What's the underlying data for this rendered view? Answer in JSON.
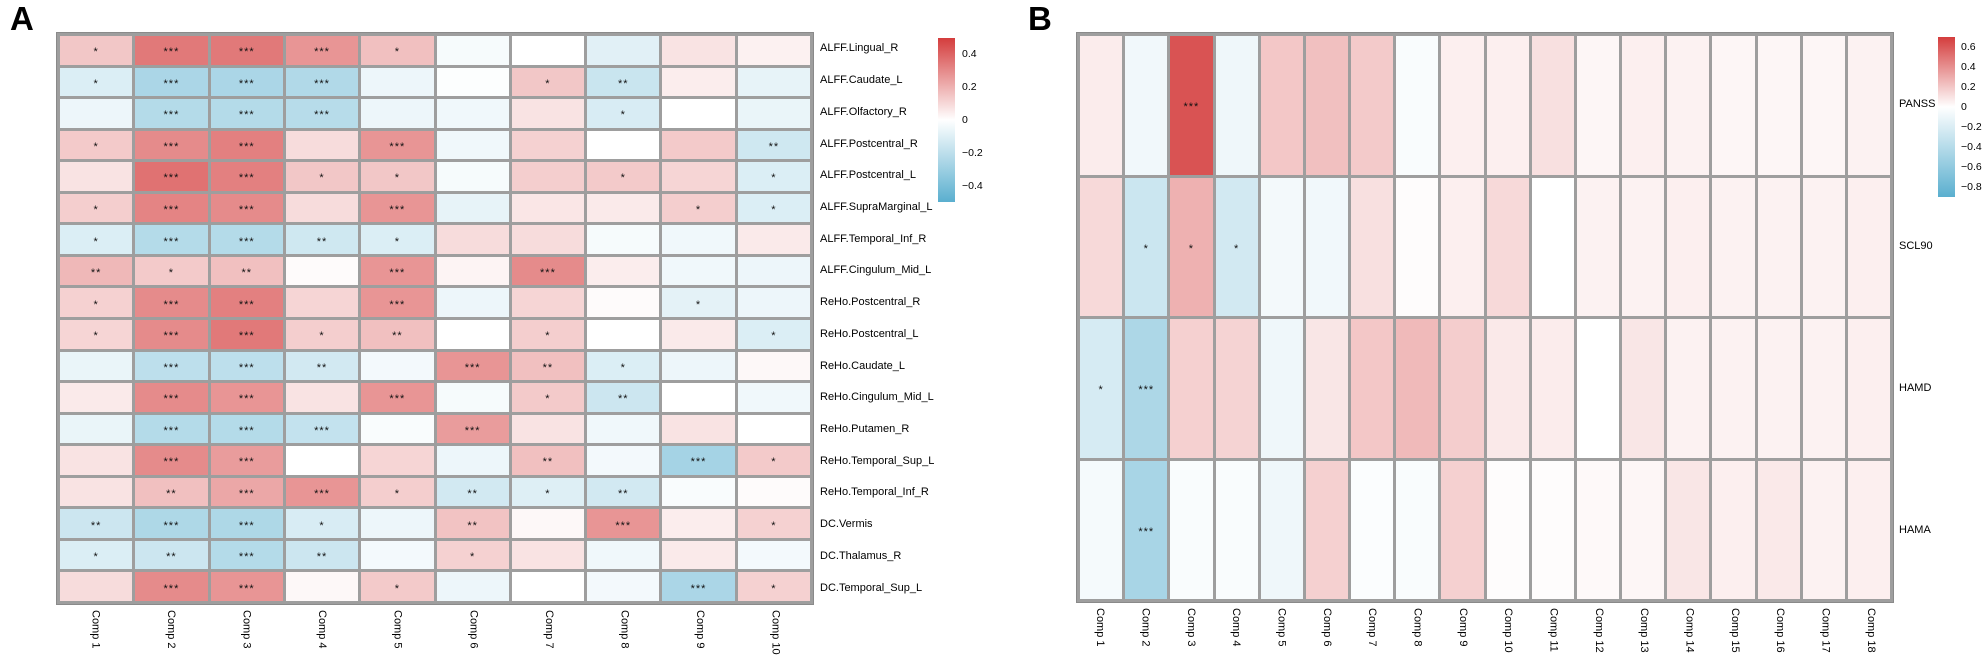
{
  "figure": {
    "panel_a_label": "A",
    "panel_b_label": "B"
  },
  "colors": {
    "positive_end": "#d43d3d",
    "negative_end": "#5aafcf",
    "zero": "#ffffff",
    "grid_line": "#9e9e9e",
    "outer_border": "#8a8a8a",
    "star": "#111111",
    "background": "#ffffff"
  },
  "chart_data": [
    {
      "type": "heatmap",
      "panel": "A",
      "columns": [
        "Comp 1",
        "Comp 2",
        "Comp 3",
        "Comp 4",
        "Comp 5",
        "Comp 6",
        "Comp 7",
        "Comp 8",
        "Comp 9",
        "Comp 10"
      ],
      "rows": [
        "ALFF.Lingual_R",
        "ALFF.Caudate_L",
        "ALFF.Olfactory_R",
        "ALFF.Postcentral_R",
        "ALFF.Postcentral_L",
        "ALFF.SupraMarginal_L",
        "ALFF.Temporal_Inf_R",
        "ALFF.Cingulum_Mid_L",
        "ReHo.Postcentral_R",
        "ReHo.Postcentral_L",
        "ReHo.Caudate_L",
        "ReHo.Cingulum_Mid_L",
        "ReHo.Putamen_R",
        "ReHo.Temporal_Sup_L",
        "ReHo.Temporal_Inf_R",
        "DC.Vermis",
        "DC.Thalamus_R",
        "DC.Temporal_Sup_L"
      ],
      "values": [
        [
          0.16,
          0.38,
          0.38,
          0.3,
          0.18,
          -0.03,
          0.0,
          -0.1,
          0.08,
          0.04
        ],
        [
          -0.12,
          -0.28,
          -0.28,
          -0.26,
          -0.06,
          -0.01,
          0.16,
          -0.18,
          0.05,
          -0.08
        ],
        [
          -0.06,
          -0.25,
          -0.25,
          -0.24,
          -0.06,
          -0.05,
          0.08,
          -0.13,
          0.0,
          -0.07
        ],
        [
          0.15,
          0.33,
          0.36,
          0.1,
          0.3,
          -0.05,
          0.13,
          0.0,
          0.15,
          -0.16
        ],
        [
          0.08,
          0.4,
          0.36,
          0.16,
          0.16,
          -0.03,
          0.14,
          0.15,
          0.12,
          -0.12
        ],
        [
          0.14,
          0.35,
          0.33,
          0.1,
          0.3,
          -0.08,
          0.07,
          0.06,
          0.14,
          -0.12
        ],
        [
          -0.12,
          -0.25,
          -0.25,
          -0.16,
          -0.12,
          0.1,
          0.1,
          -0.03,
          -0.05,
          0.06
        ],
        [
          0.2,
          0.15,
          0.18,
          0.01,
          0.3,
          0.03,
          0.33,
          0.05,
          -0.05,
          -0.06
        ],
        [
          0.13,
          0.33,
          0.36,
          0.12,
          0.3,
          -0.06,
          0.12,
          0.01,
          -0.09,
          -0.06
        ],
        [
          0.12,
          0.33,
          0.38,
          0.14,
          0.18,
          0.0,
          0.14,
          0.0,
          0.06,
          -0.12
        ],
        [
          -0.07,
          -0.22,
          -0.22,
          -0.15,
          -0.04,
          0.3,
          0.18,
          -0.12,
          -0.06,
          0.02
        ],
        [
          0.06,
          0.33,
          0.3,
          0.08,
          0.3,
          -0.03,
          0.15,
          -0.17,
          0.0,
          -0.05
        ],
        [
          -0.07,
          -0.25,
          -0.25,
          -0.2,
          -0.02,
          0.28,
          0.08,
          -0.05,
          0.08,
          0.0
        ],
        [
          0.08,
          0.33,
          0.28,
          0.0,
          0.12,
          -0.06,
          0.18,
          -0.04,
          -0.3,
          0.15
        ],
        [
          0.08,
          0.18,
          0.25,
          0.3,
          0.14,
          -0.15,
          -0.11,
          -0.15,
          -0.02,
          0.01
        ],
        [
          -0.17,
          -0.27,
          -0.27,
          -0.13,
          -0.06,
          0.17,
          0.02,
          0.3,
          0.05,
          0.13
        ],
        [
          -0.12,
          -0.17,
          -0.25,
          -0.17,
          -0.04,
          0.13,
          0.08,
          -0.05,
          0.06,
          -0.04
        ],
        [
          0.1,
          0.33,
          0.3,
          0.02,
          0.15,
          -0.06,
          0.0,
          -0.04,
          -0.28,
          0.13
        ]
      ],
      "stars": [
        [
          "*",
          "***",
          "***",
          "***",
          "*",
          "",
          "",
          "",
          "",
          ""
        ],
        [
          "*",
          "***",
          "***",
          "***",
          "",
          "",
          "*",
          "**",
          "",
          ""
        ],
        [
          "",
          "***",
          "***",
          "***",
          "",
          "",
          "",
          "*",
          "",
          ""
        ],
        [
          "*",
          "***",
          "***",
          "",
          "***",
          "",
          "",
          "",
          "",
          "**"
        ],
        [
          "",
          "***",
          "***",
          "*",
          "*",
          "",
          "",
          "*",
          "",
          "*"
        ],
        [
          "*",
          "***",
          "***",
          "",
          "***",
          "",
          "",
          "",
          "*",
          "*"
        ],
        [
          "*",
          "***",
          "***",
          "**",
          "*",
          "",
          "",
          "",
          "",
          ""
        ],
        [
          "**",
          "*",
          "**",
          "",
          "***",
          "",
          "***",
          "",
          "",
          ""
        ],
        [
          "*",
          "***",
          "***",
          "",
          "***",
          "",
          "",
          "",
          "*",
          ""
        ],
        [
          "*",
          "***",
          "***",
          "*",
          "**",
          "",
          "*",
          "",
          "",
          "*"
        ],
        [
          "",
          "***",
          "***",
          "**",
          "",
          "***",
          "**",
          "*",
          "",
          ""
        ],
        [
          "",
          "***",
          "***",
          "",
          "***",
          "",
          "*",
          "**",
          "",
          ""
        ],
        [
          "",
          "***",
          "***",
          "***",
          "",
          "***",
          "",
          "",
          "",
          ""
        ],
        [
          "",
          "***",
          "***",
          "",
          "",
          "",
          "**",
          "",
          "***",
          "*"
        ],
        [
          "",
          "**",
          "***",
          "***",
          "*",
          "**",
          "*",
          "**",
          "",
          ""
        ],
        [
          "**",
          "***",
          "***",
          "*",
          "",
          "**",
          "",
          "***",
          "",
          "*"
        ],
        [
          "*",
          "**",
          "***",
          "**",
          "",
          "*",
          "",
          "",
          "",
          ""
        ],
        [
          "",
          "***",
          "***",
          "",
          "*",
          "",
          "",
          "",
          "***",
          "*"
        ]
      ],
      "color_scale": {
        "pos_full_at": 0.55,
        "neg_full_at": 0.55
      },
      "legend_range": [
        0.5,
        -0.5
      ],
      "legend_ticks": [
        {
          "label": "0.4",
          "value": 0.4
        },
        {
          "label": "0.2",
          "value": 0.2
        },
        {
          "label": "0",
          "value": 0.0
        },
        {
          "label": "−0.2",
          "value": -0.2
        },
        {
          "label": "−0.4",
          "value": -0.4
        }
      ]
    },
    {
      "type": "heatmap",
      "panel": "B",
      "columns": [
        "Comp 1",
        "Comp 2",
        "Comp 3",
        "Comp 4",
        "Comp 5",
        "Comp 6",
        "Comp 7",
        "Comp 8",
        "Comp 9",
        "Comp 10",
        "Comp 11",
        "Comp 12",
        "Comp 13",
        "Comp 14",
        "Comp 15",
        "Comp 16",
        "Comp 17",
        "Comp 18"
      ],
      "rows": [
        "PANSS",
        "SCL90",
        "HAMD",
        "HAMA"
      ],
      "values": [
        [
          0.06,
          -0.07,
          0.55,
          -0.08,
          0.18,
          0.2,
          0.17,
          -0.03,
          0.05,
          0.05,
          0.1,
          0.03,
          0.05,
          0.04,
          0.03,
          0.03,
          0.03,
          0.04
        ],
        [
          0.12,
          -0.25,
          0.25,
          -0.22,
          -0.06,
          -0.07,
          0.1,
          0.01,
          0.05,
          0.12,
          0.0,
          0.04,
          0.04,
          0.05,
          0.04,
          0.04,
          0.04,
          0.05
        ],
        [
          -0.2,
          -0.4,
          0.15,
          0.14,
          -0.08,
          0.08,
          0.18,
          0.22,
          0.16,
          0.07,
          0.06,
          0.0,
          0.08,
          0.04,
          0.04,
          0.04,
          0.04,
          0.05
        ],
        [
          -0.05,
          -0.42,
          -0.03,
          -0.03,
          -0.08,
          0.15,
          -0.02,
          -0.03,
          0.15,
          0.01,
          0.01,
          0.02,
          0.03,
          0.08,
          0.05,
          0.07,
          0.04,
          0.05
        ]
      ],
      "stars": [
        [
          "",
          "",
          "***",
          "",
          "",
          "",
          "",
          "",
          "",
          "",
          "",
          "",
          "",
          "",
          "",
          "",
          "",
          ""
        ],
        [
          "",
          "*",
          "*",
          "*",
          "",
          "",
          "",
          "",
          "",
          "",
          "",
          "",
          "",
          "",
          "",
          "",
          "",
          ""
        ],
        [
          "*",
          "***",
          "",
          "",
          "",
          "",
          "",
          "",
          "",
          "",
          "",
          "",
          "",
          "",
          "",
          "",
          "",
          ""
        ],
        [
          "",
          "***",
          "",
          "",
          "",
          "",
          "",
          "",
          "",
          "",
          "",
          "",
          "",
          "",
          "",
          "",
          "",
          ""
        ]
      ],
      "color_scale": {
        "pos_full_at": 0.62,
        "neg_full_at": 0.8
      },
      "legend_range": [
        0.7,
        -0.9
      ],
      "legend_ticks": [
        {
          "label": "0.6",
          "value": 0.6
        },
        {
          "label": "0.4",
          "value": 0.4
        },
        {
          "label": "0.2",
          "value": 0.2
        },
        {
          "label": "0",
          "value": 0.0
        },
        {
          "label": "−0.2",
          "value": -0.2
        },
        {
          "label": "−0.4",
          "value": -0.4
        },
        {
          "label": "−0.6",
          "value": -0.6
        },
        {
          "label": "−0.8",
          "value": -0.8
        }
      ]
    }
  ]
}
